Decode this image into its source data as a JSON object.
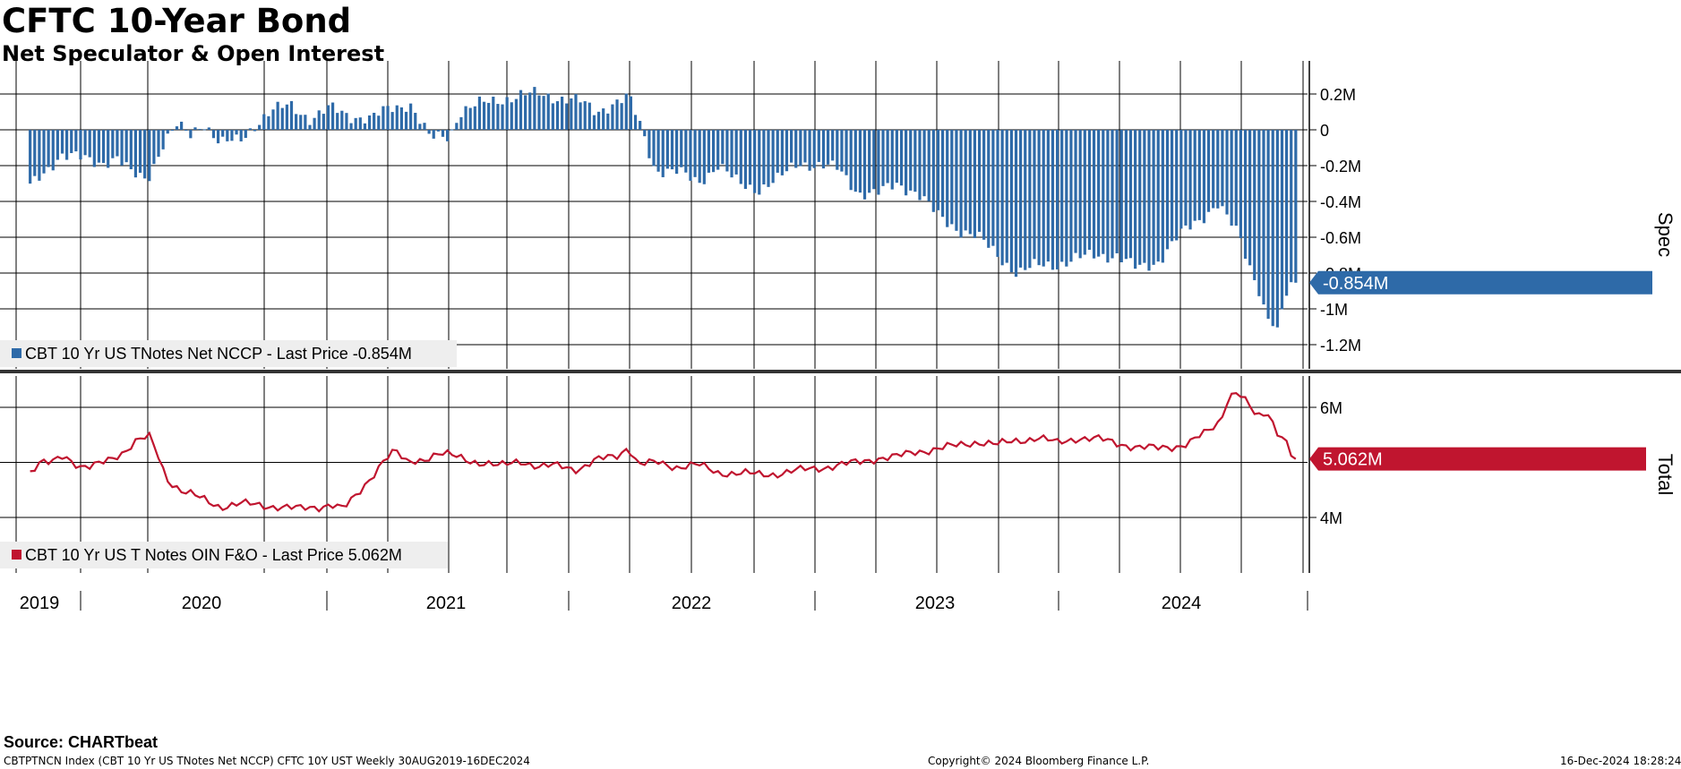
{
  "header": {
    "title": "CFTC 10-Year Bond",
    "subtitle": "Net Speculator & Open Interest"
  },
  "footer": {
    "source": "Source: CHARTbeat",
    "ticker_info": "CBTPTNCN Index (CBT 10 Yr US TNotes Net NCCP) CFTC 10Y UST  Weekly 30AUG2019-16DEC2024",
    "copyright": "Copyright© 2024 Bloomberg Finance L.P.",
    "timestamp": "16-Dec-2024 18:28:24"
  },
  "colors": {
    "spec_bar": "#2e6aa8",
    "oi_line": "#c0152f",
    "grid": "#000000"
  },
  "chart_data": [
    {
      "type": "bar",
      "panel": "top",
      "ylabel": "Spec",
      "ylim": [
        -1.3,
        0.35
      ],
      "yticks": [
        0.2,
        0,
        -0.2,
        -0.4,
        -0.6,
        -0.8,
        -1.0,
        -1.2
      ],
      "ytick_labels": [
        "0.2M",
        "0",
        "-0.2M",
        "-0.4M",
        "-0.6M",
        "-0.8M",
        "-1M",
        "-1.2M"
      ],
      "x_start": "2019-08-30",
      "x_end": "2024-12-16",
      "x_step_days": 7,
      "unit": "M",
      "last_value_label": "-0.854M",
      "legend": "CBT 10 Yr US TNotes Net NCCP - Last Price -0.854M",
      "anchors": [
        [
          "2019-08-30",
          -0.32
        ],
        [
          "2019-10-15",
          -0.14
        ],
        [
          "2019-12-15",
          -0.18
        ],
        [
          "2020-01-10",
          -0.16
        ],
        [
          "2020-02-01",
          -0.25
        ],
        [
          "2020-02-25",
          -0.27
        ],
        [
          "2020-03-20",
          -0.08
        ],
        [
          "2020-04-10",
          0.02
        ],
        [
          "2020-05-01",
          -0.03
        ],
        [
          "2020-05-20",
          0.05
        ],
        [
          "2020-06-15",
          -0.08
        ],
        [
          "2020-07-15",
          -0.06
        ],
        [
          "2020-08-10",
          0.04
        ],
        [
          "2020-09-01",
          0.1
        ],
        [
          "2020-10-01",
          0.14
        ],
        [
          "2020-11-01",
          0.06
        ],
        [
          "2020-12-01",
          0.12
        ],
        [
          "2021-01-01",
          0.08
        ],
        [
          "2021-02-01",
          0.06
        ],
        [
          "2021-03-01",
          0.12
        ],
        [
          "2021-04-01",
          0.15
        ],
        [
          "2021-05-01",
          -0.05
        ],
        [
          "2021-06-01",
          -0.03
        ],
        [
          "2021-06-15",
          0.1
        ],
        [
          "2021-07-15",
          0.14
        ],
        [
          "2021-08-15",
          0.17
        ],
        [
          "2021-09-15",
          0.19
        ],
        [
          "2021-10-15",
          0.2
        ],
        [
          "2021-11-15",
          0.18
        ],
        [
          "2021-12-15",
          0.16
        ],
        [
          "2022-01-10",
          0.1
        ],
        [
          "2022-02-05",
          0.15
        ],
        [
          "2022-03-01",
          0.18
        ],
        [
          "2022-03-20",
          0.01
        ],
        [
          "2022-04-10",
          -0.22
        ],
        [
          "2022-05-15",
          -0.24
        ],
        [
          "2022-06-15",
          -0.29
        ],
        [
          "2022-07-15",
          -0.2
        ],
        [
          "2022-08-15",
          -0.3
        ],
        [
          "2022-09-15",
          -0.33
        ],
        [
          "2022-10-15",
          -0.28
        ],
        [
          "2022-11-15",
          -0.18
        ],
        [
          "2022-12-15",
          -0.2
        ],
        [
          "2023-01-15",
          -0.22
        ],
        [
          "2023-02-15",
          -0.35
        ],
        [
          "2023-03-15",
          -0.36
        ],
        [
          "2023-04-15",
          -0.3
        ],
        [
          "2023-05-15",
          -0.35
        ],
        [
          "2023-06-15",
          -0.48
        ],
        [
          "2023-07-15",
          -0.55
        ],
        [
          "2023-08-15",
          -0.6
        ],
        [
          "2023-09-15",
          -0.7
        ],
        [
          "2023-10-15",
          -0.8
        ],
        [
          "2023-11-15",
          -0.76
        ],
        [
          "2023-12-15",
          -0.75
        ],
        [
          "2024-01-15",
          -0.72
        ],
        [
          "2024-02-15",
          -0.7
        ],
        [
          "2024-03-15",
          -0.7
        ],
        [
          "2024-04-15",
          -0.78
        ],
        [
          "2024-05-15",
          -0.74
        ],
        [
          "2024-06-15",
          -0.6
        ],
        [
          "2024-07-15",
          -0.52
        ],
        [
          "2024-08-01",
          -0.46
        ],
        [
          "2024-08-15",
          -0.4
        ],
        [
          "2024-09-01",
          -0.5
        ],
        [
          "2024-09-20",
          -0.62
        ],
        [
          "2024-10-01",
          -0.75
        ],
        [
          "2024-10-15",
          -0.85
        ],
        [
          "2024-10-28",
          -1.02
        ],
        [
          "2024-11-08",
          -1.08
        ],
        [
          "2024-11-15",
          -1.14
        ],
        [
          "2024-11-25",
          -0.96
        ],
        [
          "2024-12-03",
          -0.9
        ],
        [
          "2024-12-16",
          -0.854
        ]
      ]
    },
    {
      "type": "line",
      "panel": "bottom",
      "ylabel": "Total",
      "ylim": [
        3.8,
        6.4
      ],
      "yticks": [
        6,
        4
      ],
      "ytick_labels": [
        "6M",
        "4M"
      ],
      "unit": "M",
      "last_value_label": "5.062M",
      "legend": "CBT 10 Yr US T Notes OIN F&O - Last Price 5.062M",
      "anchors": [
        [
          "2019-08-30",
          4.82
        ],
        [
          "2019-09-15",
          4.98
        ],
        [
          "2019-10-01",
          4.98
        ],
        [
          "2019-10-20",
          5.15
        ],
        [
          "2019-11-15",
          4.92
        ],
        [
          "2019-12-01",
          4.9
        ],
        [
          "2019-12-20",
          5.0
        ],
        [
          "2020-01-20",
          5.2
        ],
        [
          "2020-02-10",
          5.4
        ],
        [
          "2020-02-28",
          5.45
        ],
        [
          "2020-03-10",
          5.2
        ],
        [
          "2020-03-25",
          4.72
        ],
        [
          "2020-04-15",
          4.5
        ],
        [
          "2020-05-15",
          4.35
        ],
        [
          "2020-06-15",
          4.2
        ],
        [
          "2020-07-15",
          4.25
        ],
        [
          "2020-08-15",
          4.22
        ],
        [
          "2020-09-15",
          4.2
        ],
        [
          "2020-10-15",
          4.15
        ],
        [
          "2020-11-15",
          4.2
        ],
        [
          "2020-12-01",
          4.25
        ],
        [
          "2020-12-20",
          4.15
        ],
        [
          "2021-01-10",
          4.4
        ],
        [
          "2021-02-01",
          4.75
        ],
        [
          "2021-02-20",
          5.05
        ],
        [
          "2021-03-10",
          5.2
        ],
        [
          "2021-03-25",
          5.0
        ],
        [
          "2021-04-15",
          5.05
        ],
        [
          "2021-05-15",
          5.15
        ],
        [
          "2021-06-15",
          5.1
        ],
        [
          "2021-07-15",
          5.0
        ],
        [
          "2021-08-15",
          4.92
        ],
        [
          "2021-09-15",
          5.05
        ],
        [
          "2021-10-15",
          4.9
        ],
        [
          "2021-11-15",
          4.95
        ],
        [
          "2021-12-15",
          4.88
        ],
        [
          "2022-01-15",
          5.05
        ],
        [
          "2022-02-15",
          5.15
        ],
        [
          "2022-02-28",
          5.3
        ],
        [
          "2022-03-15",
          4.95
        ],
        [
          "2022-04-15",
          5.0
        ],
        [
          "2022-05-15",
          4.92
        ],
        [
          "2022-06-15",
          4.95
        ],
        [
          "2022-07-15",
          4.82
        ],
        [
          "2022-08-15",
          4.8
        ],
        [
          "2022-09-15",
          4.78
        ],
        [
          "2022-10-15",
          4.8
        ],
        [
          "2022-11-15",
          4.85
        ],
        [
          "2022-12-15",
          4.9
        ],
        [
          "2023-01-15",
          4.95
        ],
        [
          "2023-02-15",
          5.0
        ],
        [
          "2023-03-15",
          5.08
        ],
        [
          "2023-04-15",
          5.1
        ],
        [
          "2023-05-15",
          5.2
        ],
        [
          "2023-06-15",
          5.25
        ],
        [
          "2023-07-15",
          5.3
        ],
        [
          "2023-08-15",
          5.38
        ],
        [
          "2023-09-15",
          5.32
        ],
        [
          "2023-10-15",
          5.4
        ],
        [
          "2023-11-15",
          5.45
        ],
        [
          "2023-12-15",
          5.35
        ],
        [
          "2024-01-15",
          5.45
        ],
        [
          "2024-02-15",
          5.42
        ],
        [
          "2024-03-15",
          5.35
        ],
        [
          "2024-04-15",
          5.28
        ],
        [
          "2024-05-15",
          5.25
        ],
        [
          "2024-06-15",
          5.3
        ],
        [
          "2024-07-01",
          5.35
        ],
        [
          "2024-08-01",
          5.55
        ],
        [
          "2024-08-20",
          5.75
        ],
        [
          "2024-09-01",
          6.2
        ],
        [
          "2024-09-15",
          6.3
        ],
        [
          "2024-10-01",
          6.05
        ],
        [
          "2024-10-15",
          5.8
        ],
        [
          "2024-11-01",
          5.9
        ],
        [
          "2024-11-15",
          5.55
        ],
        [
          "2024-11-25",
          5.5
        ],
        [
          "2024-12-05",
          5.15
        ],
        [
          "2024-12-16",
          5.062
        ]
      ]
    }
  ],
  "x_axis": {
    "year_labels": [
      "2019",
      "2020",
      "2021",
      "2022",
      "2023",
      "2024"
    ]
  }
}
